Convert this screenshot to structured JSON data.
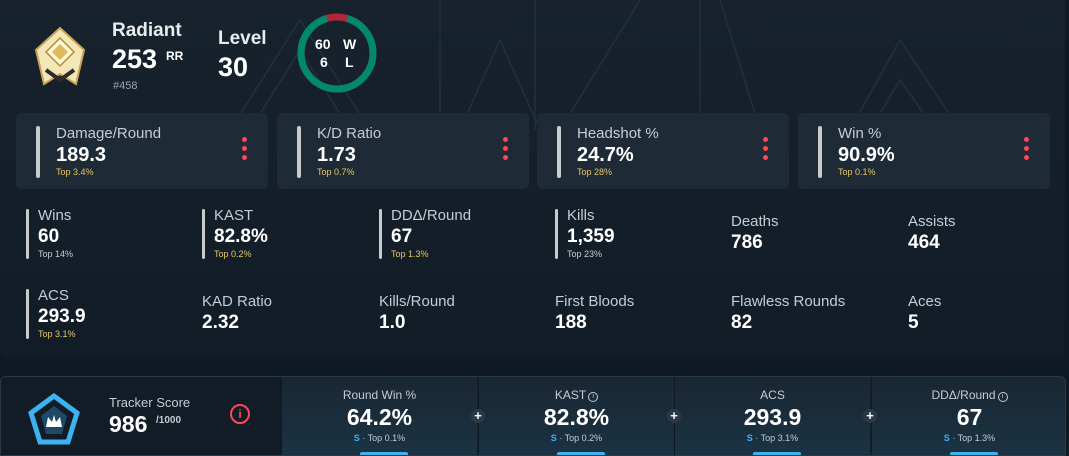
{
  "header": {
    "rank_name": "Radiant",
    "rr_value": "253",
    "rr_unit": "RR",
    "rank_position": "#458",
    "level_label": "Level",
    "level_value": "30",
    "wins": "60",
    "wins_label": "W",
    "losses": "6",
    "losses_label": "L",
    "win_fraction": 0.909
  },
  "cards": [
    {
      "label": "Damage/Round",
      "value": "189.3",
      "percentile": "Top 3.4%"
    },
    {
      "label": "K/D Ratio",
      "value": "1.73",
      "percentile": "Top 0.7%"
    },
    {
      "label": "Headshot %",
      "value": "24.7%",
      "percentile": "Top 28%"
    },
    {
      "label": "Win %",
      "value": "90.9%",
      "percentile": "Top 0.1%"
    }
  ],
  "stats": [
    {
      "label": "Wins",
      "value": "60",
      "percentile": "Top 14%"
    },
    {
      "label": "KAST",
      "value": "82.8%",
      "percentile": "Top 0.2%"
    },
    {
      "label": "DDΔ/Round",
      "value": "67",
      "percentile": "Top 1.3%"
    },
    {
      "label": "Kills",
      "value": "1,359",
      "percentile": "Top 23%"
    },
    {
      "label": "Deaths",
      "value": "786"
    },
    {
      "label": "Assists",
      "value": "464"
    },
    {
      "label": "ACS",
      "value": "293.9",
      "percentile": "Top 3.1%"
    },
    {
      "label": "KAD Ratio",
      "value": "2.32"
    },
    {
      "label": "Kills/Round",
      "value": "1.0"
    },
    {
      "label": "First Bloods",
      "value": "188"
    },
    {
      "label": "Flawless Rounds",
      "value": "82"
    },
    {
      "label": "Aces",
      "value": "5"
    }
  ],
  "tracker": {
    "label": "Tracker Score",
    "value": "986",
    "max": "/1000",
    "info_glyph": "i",
    "plus_glyph": "+",
    "columns": [
      {
        "label": "Round Win %",
        "value": "64.2%",
        "badge": "S",
        "percentile": " · Top 0.1%"
      },
      {
        "label": "KAST",
        "value": "82.8%",
        "badge": "S",
        "percentile": " · Top 0.2%"
      },
      {
        "label": "ACS",
        "value": "293.9",
        "badge": "S",
        "percentile": " · Top 3.1%"
      },
      {
        "label": "DDΔ/Round",
        "value": "67",
        "badge": "S",
        "percentile": " · Top 1.3%"
      }
    ]
  },
  "colors": {
    "accent_red": "#ff4655",
    "win_green": "#00896b",
    "loss_red": "#b1253a",
    "gold": "#e8c765",
    "tracker_blue": "#3cb3f0"
  }
}
